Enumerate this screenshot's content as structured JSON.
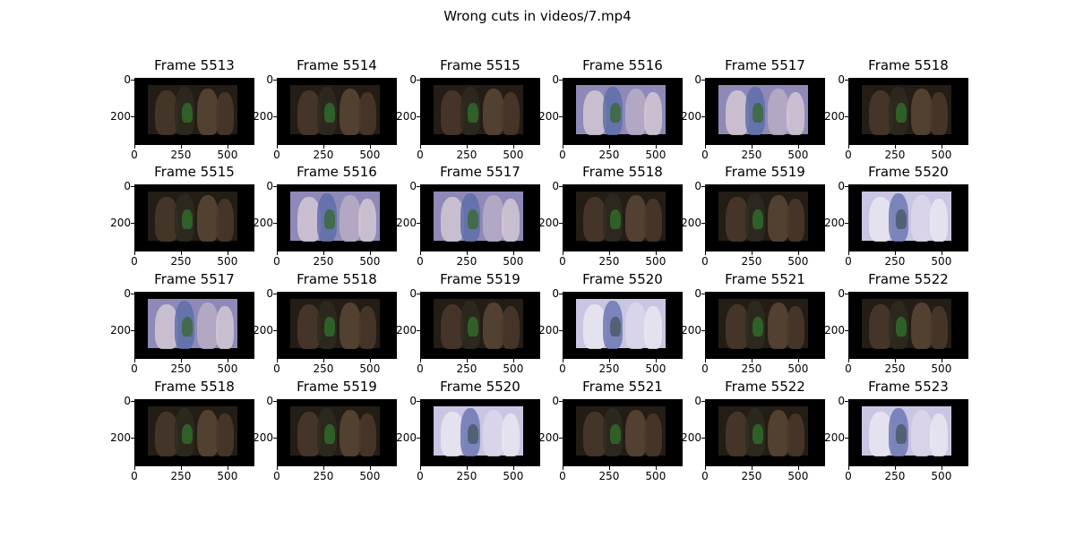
{
  "figure": {
    "title": "Wrong cuts in videos/7.mp4"
  },
  "axes": {
    "xticks": [
      "0",
      "250",
      "500"
    ],
    "yticks": [
      "0",
      "200"
    ]
  },
  "colors": {
    "frame_background": "#000000",
    "dark_scene": "#3a3328",
    "bright_scene": "#c9c6e3"
  },
  "chart_data": {
    "type": "image-grid",
    "title": "Wrong cuts in videos/7.mp4",
    "rows": 4,
    "cols": 6,
    "x_ticks": [
      0,
      250,
      500
    ],
    "y_ticks": [
      0,
      200
    ],
    "panels": [
      {
        "title": "Frame 5513",
        "scene": "dark"
      },
      {
        "title": "Frame 5514",
        "scene": "dark"
      },
      {
        "title": "Frame 5515",
        "scene": "dark"
      },
      {
        "title": "Frame 5516",
        "scene": "bright"
      },
      {
        "title": "Frame 5517",
        "scene": "bright"
      },
      {
        "title": "Frame 5518",
        "scene": "dark"
      },
      {
        "title": "Frame 5515",
        "scene": "dark"
      },
      {
        "title": "Frame 5516",
        "scene": "bright"
      },
      {
        "title": "Frame 5517",
        "scene": "bright"
      },
      {
        "title": "Frame 5518",
        "scene": "dark"
      },
      {
        "title": "Frame 5519",
        "scene": "dark"
      },
      {
        "title": "Frame 5520",
        "scene": "white"
      },
      {
        "title": "Frame 5517",
        "scene": "bright"
      },
      {
        "title": "Frame 5518",
        "scene": "dark"
      },
      {
        "title": "Frame 5519",
        "scene": "dark"
      },
      {
        "title": "Frame 5520",
        "scene": "white"
      },
      {
        "title": "Frame 5521",
        "scene": "dark"
      },
      {
        "title": "Frame 5522",
        "scene": "dark"
      },
      {
        "title": "Frame 5518",
        "scene": "dark"
      },
      {
        "title": "Frame 5519",
        "scene": "dark"
      },
      {
        "title": "Frame 5520",
        "scene": "white"
      },
      {
        "title": "Frame 5521",
        "scene": "dark"
      },
      {
        "title": "Frame 5522",
        "scene": "dark"
      },
      {
        "title": "Frame 5523",
        "scene": "white"
      }
    ]
  }
}
